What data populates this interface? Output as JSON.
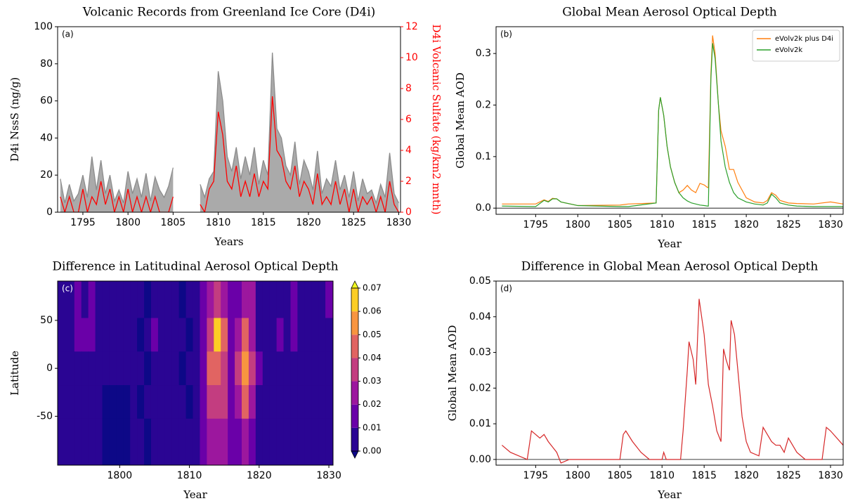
{
  "chart_data": [
    {
      "type": "area",
      "title": "Volcanic Records from Greenland Ice Core (D4i)",
      "annotation": "(a)",
      "xlabel": "Years",
      "ylabel": "D4i NssS (ng/g)",
      "y2label": "D4i Volcanic Sulfate (kg/km2 mnth)",
      "y2_color": "#ff0000",
      "xlim": [
        1792.2,
        1830.2
      ],
      "xticks": [
        1795,
        1800,
        1805,
        1810,
        1815,
        1820,
        1825,
        1830
      ],
      "ylim": [
        0,
        100
      ],
      "yticks": [
        0,
        20,
        40,
        60,
        80,
        100
      ],
      "y2lim": [
        0,
        12
      ],
      "y2ticks": [
        0,
        2,
        4,
        6,
        8,
        10,
        12
      ],
      "x": [
        1792.5,
        1793,
        1793.5,
        1794,
        1794.5,
        1795,
        1795.5,
        1796,
        1796.5,
        1797,
        1797.5,
        1798,
        1798.5,
        1799,
        1799.5,
        1800,
        1800.5,
        1801,
        1801.5,
        1802,
        1802.5,
        1803,
        1803.5,
        1804,
        1804.5,
        1805,
        1805.5,
        1806,
        1806.5,
        1807,
        1807.5,
        1808,
        1808.5,
        1809,
        1809.5,
        1810,
        1810.5,
        1811,
        1811.5,
        1812,
        1812.5,
        1813,
        1813.5,
        1814,
        1814.5,
        1815,
        1815.5,
        1816,
        1816.5,
        1817,
        1817.5,
        1818,
        1818.5,
        1819,
        1819.5,
        1820,
        1820.5,
        1821,
        1821.5,
        1822,
        1822.5,
        1823,
        1823.5,
        1824,
        1824.5,
        1825,
        1825.5,
        1826,
        1826.5,
        1827,
        1827.5,
        1828,
        1828.5,
        1829,
        1829.5,
        1830
      ],
      "series": [
        {
          "color": "#8c8c8c",
          "fill": "#aaaaaa",
          "values": [
            18,
            5,
            15,
            6,
            10,
            20,
            8,
            30,
            12,
            28,
            10,
            20,
            6,
            12,
            5,
            22,
            10,
            18,
            8,
            21,
            6,
            19,
            12,
            8,
            14,
            24,
            null,
            null,
            null,
            null,
            null,
            15,
            8,
            18,
            22,
            76,
            60,
            30,
            22,
            35,
            18,
            30,
            20,
            35,
            15,
            28,
            20,
            86,
            45,
            40,
            25,
            20,
            38,
            15,
            28,
            22,
            12,
            33,
            10,
            18,
            14,
            28,
            12,
            20,
            8,
            22,
            6,
            18,
            10,
            12,
            5,
            15,
            8,
            32,
            10,
            5
          ]
        },
        {
          "color": "#ff0000",
          "axis": "y2",
          "values": [
            1,
            0,
            1,
            0,
            0,
            1.5,
            0,
            1,
            0.5,
            2,
            0.5,
            1.5,
            0,
            1,
            0,
            1.5,
            0,
            1,
            0,
            1,
            0,
            1,
            0,
            0,
            0,
            1,
            null,
            null,
            null,
            null,
            null,
            0.5,
            0,
            1.5,
            2,
            6.5,
            5,
            2,
            1.5,
            3,
            1,
            2,
            1,
            2.5,
            1,
            2,
            1.5,
            7.5,
            4,
            3.5,
            2,
            1.5,
            3,
            1,
            2,
            1.5,
            0.5,
            2.5,
            0.5,
            1,
            0.5,
            2,
            0.5,
            1.5,
            0,
            1.5,
            0,
            1,
            0.5,
            1,
            0,
            1,
            0,
            2,
            0.5,
            0
          ]
        }
      ]
    },
    {
      "type": "line",
      "title": "Global Mean Aerosol Optical Depth",
      "annotation": "(b)",
      "xlabel": "Year",
      "ylabel": "Global Mean AOD",
      "legend": "upper right",
      "xlim": [
        1790.3,
        1831.5
      ],
      "xticks": [
        1795,
        1800,
        1805,
        1810,
        1815,
        1820,
        1825,
        1830
      ],
      "ylim": [
        -0.012,
        0.352
      ],
      "yticks": [
        {
          "value": 0,
          "label": "0.0"
        },
        0.1,
        0.2,
        0.3
      ],
      "x": [
        1791,
        1795,
        1796,
        1796.5,
        1797,
        1797.5,
        1798,
        1800,
        1805,
        1806,
        1809.3,
        1809.6,
        1809.8,
        1810.2,
        1810.6,
        1811,
        1811.5,
        1812,
        1812.5,
        1813,
        1813.5,
        1814,
        1814.5,
        1815,
        1815.4,
        1815.5,
        1815.8,
        1816,
        1816.3,
        1816.7,
        1817,
        1817.5,
        1818,
        1818.5,
        1819,
        1820,
        1821,
        1822,
        1822.5,
        1823,
        1823.5,
        1824,
        1825,
        1826,
        1828,
        1830,
        1831.5
      ],
      "series": [
        {
          "name": "eVolv2k plus D4i",
          "color": "#ff7f0e",
          "values": [
            0.008,
            0.008,
            0.016,
            0.013,
            0.019,
            0.018,
            0.012,
            0.005,
            0.006,
            0.008,
            0.01,
            0.19,
            0.215,
            0.18,
            0.12,
            0.08,
            0.05,
            0.03,
            0.035,
            0.044,
            0.035,
            0.03,
            0.048,
            0.045,
            0.04,
            0.04,
            0.26,
            0.335,
            0.3,
            0.2,
            0.15,
            0.12,
            0.075,
            0.075,
            0.05,
            0.02,
            0.012,
            0.01,
            0.015,
            0.03,
            0.025,
            0.015,
            0.01,
            0.009,
            0.008,
            0.012,
            0.008
          ]
        },
        {
          "name": "eVolv2k",
          "color": "#2ca02c",
          "values": [
            0.004,
            0.003,
            0.015,
            0.012,
            0.018,
            0.018,
            0.012,
            0.005,
            0.003,
            0.003,
            0.01,
            0.19,
            0.215,
            0.18,
            0.12,
            0.08,
            0.05,
            0.03,
            0.02,
            0.014,
            0.01,
            0.008,
            0.006,
            0.005,
            0.004,
            0.004,
            0.25,
            0.32,
            0.29,
            0.2,
            0.13,
            0.08,
            0.05,
            0.03,
            0.02,
            0.012,
            0.008,
            0.006,
            0.01,
            0.027,
            0.02,
            0.01,
            0.006,
            0.004,
            0.003,
            0.003,
            0.003
          ]
        }
      ]
    },
    {
      "type": "contour",
      "title": "Difference in Latitudinal Aerosol Optical Depth",
      "annotation": "(c)",
      "xlabel": "Year",
      "ylabel": "Latitude",
      "xlim": [
        1791.1,
        1830.6
      ],
      "xticks": [
        1800,
        1810,
        1820,
        1830
      ],
      "ylim": [
        -101,
        91
      ],
      "yticks": [
        -50,
        0,
        50
      ],
      "x": [
        1791,
        1792,
        1793,
        1794,
        1795,
        1796,
        1797,
        1798,
        1799,
        1800,
        1801,
        1802,
        1803,
        1804,
        1805,
        1806,
        1807,
        1808,
        1809,
        1810,
        1811,
        1812,
        1813,
        1814,
        1815,
        1816,
        1817,
        1818,
        1819,
        1820,
        1821,
        1822,
        1823,
        1824,
        1825,
        1826,
        1827,
        1828,
        1829,
        1830
      ],
      "y": [
        70,
        35,
        0,
        -35,
        -70
      ],
      "z": [
        [
          0.005,
          0.005,
          0.008,
          0.012,
          0.008,
          0.012,
          0.008,
          0.005,
          0.005,
          0.005,
          0.005,
          0.005,
          0.005,
          -0.002,
          0.005,
          0.005,
          0.005,
          0.005,
          -0.002,
          0.005,
          0.005,
          0.012,
          0.025,
          0.035,
          0.025,
          0.012,
          0.015,
          0.025,
          0.02,
          0.008,
          0.005,
          0.008,
          0.008,
          0.008,
          0.012,
          0.008,
          0.005,
          0.005,
          0.005,
          0.012
        ],
        [
          0.005,
          0.005,
          0.008,
          0.015,
          0.012,
          0.012,
          0.008,
          0.005,
          0.005,
          0.005,
          0.005,
          0.005,
          -0.002,
          0.005,
          0.012,
          0.005,
          0.005,
          0.005,
          0.005,
          -0.002,
          0.005,
          0.015,
          0.035,
          0.065,
          0.045,
          0.015,
          0.025,
          0.04,
          0.025,
          0.008,
          0.005,
          0.008,
          0.012,
          0.008,
          0.012,
          0.008,
          0.005,
          0.005,
          0.005,
          0.008
        ],
        [
          0.005,
          0.005,
          0.005,
          0.008,
          0.005,
          0.008,
          0.005,
          0.003,
          0.003,
          0.003,
          0.003,
          0.005,
          0.005,
          -0.002,
          0.005,
          0.005,
          0.005,
          0.005,
          -0.002,
          0.005,
          0.005,
          0.018,
          0.048,
          0.045,
          0.035,
          0.015,
          0.035,
          0.055,
          0.035,
          0.01,
          0.005,
          0.005,
          0.005,
          0.005,
          0.005,
          0.005,
          0.005,
          0.005,
          0.005,
          0.005
        ],
        [
          0.005,
          0.005,
          0.005,
          0.005,
          0.005,
          0.005,
          0.005,
          -0.002,
          -0.002,
          -0.002,
          -0.002,
          0.003,
          -0.002,
          0.005,
          0.005,
          0.005,
          0.005,
          0.005,
          0.005,
          -0.002,
          0.005,
          0.012,
          0.03,
          0.035,
          0.03,
          0.012,
          0.025,
          0.04,
          0.025,
          0.008,
          0.005,
          0.005,
          0.005,
          0.005,
          0.005,
          0.005,
          0.005,
          0.005,
          0.005,
          0.005
        ],
        [
          0.005,
          0.005,
          0.005,
          0.005,
          0.005,
          0.005,
          0.005,
          -0.002,
          -0.002,
          -0.002,
          -0.002,
          0.003,
          0.005,
          -0.002,
          0.005,
          0.005,
          0.005,
          0.005,
          0.005,
          0.005,
          0.005,
          0.012,
          0.02,
          0.025,
          0.02,
          0.01,
          0.015,
          0.025,
          0.015,
          0.005,
          0.005,
          0.005,
          0.005,
          0.005,
          0.005,
          0.005,
          0.005,
          0.005,
          0.005,
          0.005
        ]
      ],
      "levels": [
        {
          "value": 0,
          "label": "0.00"
        },
        {
          "value": 0.01,
          "label": "0.01"
        },
        {
          "value": 0.02,
          "label": "0.02"
        },
        {
          "value": 0.03,
          "label": "0.03"
        },
        {
          "value": 0.04,
          "label": "0.04"
        },
        {
          "value": 0.05,
          "label": "0.05"
        },
        {
          "value": 0.06,
          "label": "0.06"
        },
        {
          "value": 0.07,
          "label": "0.07"
        }
      ],
      "colors": [
        "#2a0593",
        "#6a00a8",
        "#9c179e",
        "#c33d80",
        "#e16462",
        "#f89540",
        "#fccd25"
      ],
      "under_color": "#0d0887",
      "over_color": "#f0f921"
    },
    {
      "type": "line",
      "title": "Difference in Global Mean Aerosol Optical Depth",
      "annotation": "(d)",
      "xlabel": "Year",
      "ylabel": "Global Mean AOD",
      "xlim": [
        1790.3,
        1831.5
      ],
      "xticks": [
        1795,
        1800,
        1805,
        1810,
        1815,
        1820,
        1825,
        1830
      ],
      "ylim": [
        -0.0016,
        0.05
      ],
      "yticks": [
        {
          "value": 0,
          "label": "0.00"
        },
        {
          "value": 0.01,
          "label": "0.01"
        },
        {
          "value": 0.02,
          "label": "0.02"
        },
        {
          "value": 0.03,
          "label": "0.03"
        },
        {
          "value": 0.04,
          "label": "0.04"
        },
        {
          "value": 0.05,
          "label": "0.05"
        }
      ],
      "x": [
        1791,
        1792,
        1794,
        1794.5,
        1795.5,
        1796,
        1796.5,
        1797.5,
        1798,
        1799,
        1800,
        1805,
        1805.4,
        1805.7,
        1806.5,
        1807.5,
        1808.5,
        1810,
        1810.2,
        1810.5,
        1811.5,
        1812.2,
        1812.5,
        1813,
        1813.2,
        1813.7,
        1814,
        1814.4,
        1815,
        1815.5,
        1816,
        1816.5,
        1817,
        1817.3,
        1817.6,
        1818,
        1818.2,
        1818.6,
        1819,
        1819.5,
        1820,
        1820.5,
        1821.5,
        1822,
        1822.5,
        1823,
        1823.5,
        1824,
        1824.5,
        1825,
        1825.5,
        1826,
        1827,
        1828,
        1829,
        1829.5,
        1830,
        1831.5
      ],
      "series": [
        {
          "color": "#d62728",
          "values": [
            0.004,
            0.002,
            0.0,
            0.008,
            0.006,
            0.007,
            0.005,
            0.002,
            -0.001,
            0.0,
            0.0,
            0.0,
            0.007,
            0.008,
            0.005,
            0.002,
            0.0,
            0.0,
            0.002,
            0.0,
            0.0,
            0.0,
            0.008,
            0.025,
            0.033,
            0.028,
            0.021,
            0.045,
            0.035,
            0.021,
            0.015,
            0.008,
            0.005,
            0.031,
            0.028,
            0.025,
            0.039,
            0.035,
            0.025,
            0.012,
            0.005,
            0.002,
            0.001,
            0.009,
            0.007,
            0.005,
            0.004,
            0.004,
            0.002,
            0.006,
            0.004,
            0.002,
            0.0,
            0.0,
            0.0,
            0.009,
            0.008,
            0.004
          ]
        }
      ]
    }
  ]
}
